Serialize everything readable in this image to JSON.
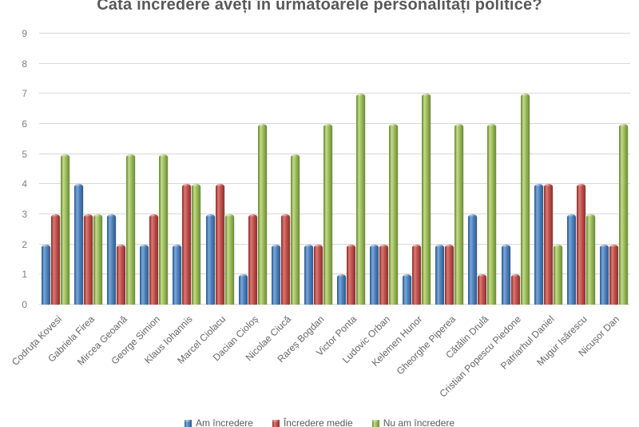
{
  "chart_data": {
    "type": "bar",
    "title": "Câtă încredere aveți în următoarele personalități politice?",
    "categories": [
      "Codruța Kovesi",
      "Gabriela Firea",
      "Mircea Geoană",
      "George Simion",
      "Klaus Iohannis",
      "Marcel Ciolacu",
      "Dacian Cioloș",
      "Nicolae Ciucă",
      "Rareș Bogdan",
      "Victor Ponta",
      "Ludovic Orban",
      "Kelemen Hunor",
      "Gheorghe Piperea",
      "Cătălin Drulă",
      "Cristian Popescu Piedone",
      "Patriarhul Daniel",
      "Mugur Isărescu",
      "Nicușor Dan"
    ],
    "series": [
      {
        "name": "Am încredere",
        "color": "#4F81BD",
        "values": [
          2,
          4,
          3,
          2,
          2,
          3,
          1,
          2,
          2,
          1,
          2,
          1,
          2,
          3,
          2,
          4,
          3,
          2
        ]
      },
      {
        "name": "Încredere medie",
        "color": "#C0504D",
        "values": [
          3,
          3,
          2,
          3,
          4,
          4,
          3,
          3,
          2,
          2,
          2,
          2,
          2,
          1,
          1,
          4,
          4,
          2
        ]
      },
      {
        "name": "Nu am încredere",
        "color": "#9BBB59",
        "values": [
          5,
          3,
          5,
          5,
          4,
          3,
          6,
          5,
          6,
          7,
          6,
          7,
          6,
          6,
          7,
          2,
          3,
          6
        ]
      }
    ],
    "ylim": [
      0,
      9
    ],
    "ytick_step": 1,
    "yticks": [
      "0",
      "1",
      "2",
      "3",
      "4",
      "5",
      "6",
      "7",
      "8",
      "9"
    ],
    "grid": true,
    "legend_position": "bottom",
    "gridline_color": "#D9D9D9",
    "title_color": "#595959",
    "axis_label_color": "#7F7F7F"
  }
}
